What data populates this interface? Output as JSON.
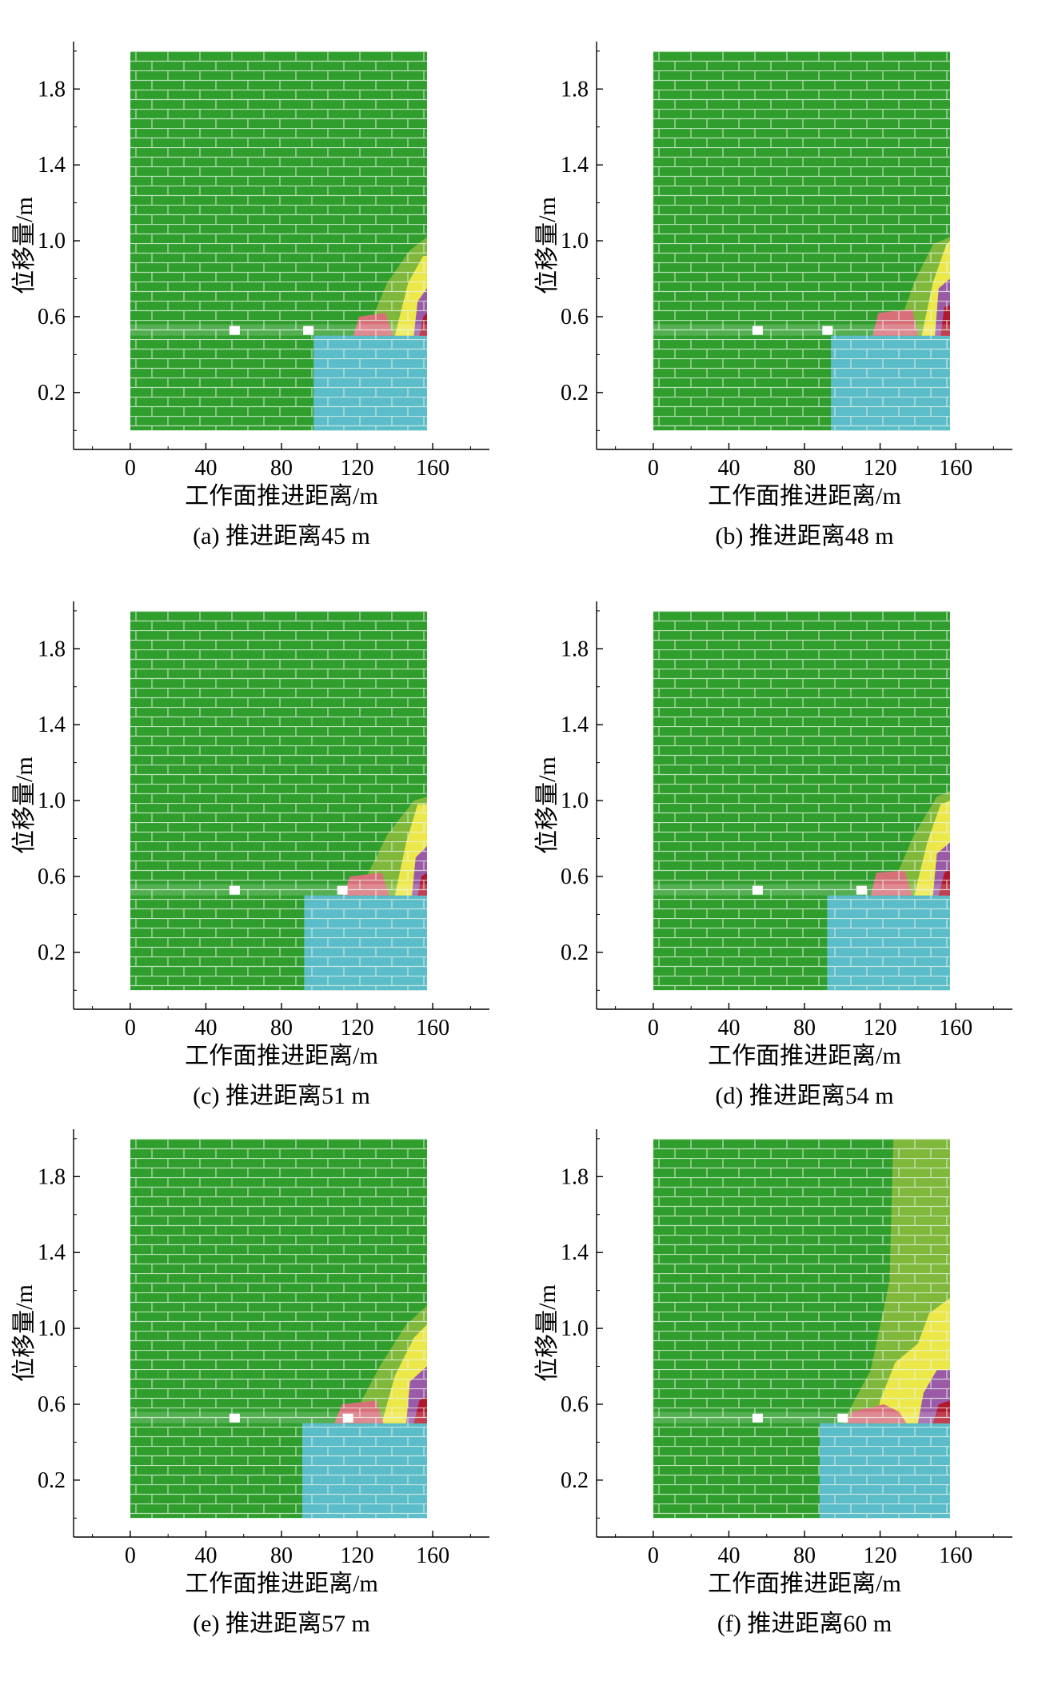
{
  "colors": {
    "green": "#2f9e2c",
    "light_green": "#7fb83a",
    "cyan": "#5bbdc9",
    "yellow": "#ede84a",
    "pink": "#d8707a",
    "purple": "#9a5aa8",
    "dark_red": "#b2172d",
    "joint": "#e8f4e8"
  },
  "chart_data": [
    {
      "type": "heatmap",
      "caption": "(a) 推进距离45 m",
      "advance": 45,
      "xlabel": "工作面推进距离/m",
      "ylabel": "位移量/m",
      "x_ticks": [
        0,
        40,
        80,
        120,
        160
      ],
      "y_ticks": [
        0.2,
        0.6,
        1.0,
        1.4,
        1.8
      ],
      "xlim": [
        -30,
        190
      ],
      "ylim": [
        -0.1,
        2.05
      ],
      "domain": {
        "x": [
          0,
          157
        ],
        "y": [
          0,
          2.0
        ]
      },
      "coal_seam_y": 0.5,
      "cyan_x_start": 97,
      "cavity_x": [
        55,
        94
      ],
      "zones": [
        {
          "color": "light_green",
          "points": [
            [
              124,
              0.5
            ],
            [
              136,
              0.78
            ],
            [
              148,
              0.95
            ],
            [
              157,
              1.02
            ],
            [
              157,
              0.5
            ]
          ]
        },
        {
          "color": "yellow",
          "points": [
            [
              140,
              0.5
            ],
            [
              147,
              0.78
            ],
            [
              155,
              0.92
            ],
            [
              157,
              0.92
            ],
            [
              157,
              0.5
            ]
          ]
        },
        {
          "color": "purple",
          "points": [
            [
              150,
              0.5
            ],
            [
              152,
              0.68
            ],
            [
              157,
              0.75
            ],
            [
              157,
              0.5
            ]
          ]
        },
        {
          "color": "dark_red",
          "points": [
            [
              153,
              0.5
            ],
            [
              155,
              0.6
            ],
            [
              157,
              0.62
            ],
            [
              157,
              0.5
            ]
          ]
        },
        {
          "color": "pink",
          "points": [
            [
              118,
              0.5
            ],
            [
              121,
              0.6
            ],
            [
              135,
              0.62
            ],
            [
              139,
              0.5
            ]
          ]
        }
      ]
    },
    {
      "type": "heatmap",
      "caption": "(b) 推进距离48 m",
      "advance": 48,
      "xlabel": "工作面推进距离/m",
      "ylabel": "位移量/m",
      "x_ticks": [
        0,
        40,
        80,
        120,
        160
      ],
      "y_ticks": [
        0.2,
        0.6,
        1.0,
        1.4,
        1.8
      ],
      "xlim": [
        -30,
        190
      ],
      "ylim": [
        -0.1,
        2.05
      ],
      "domain": {
        "x": [
          0,
          157
        ],
        "y": [
          0,
          2.0
        ]
      },
      "coal_seam_y": 0.5,
      "cyan_x_start": 94,
      "cavity_x": [
        55,
        92
      ],
      "zones": [
        {
          "color": "light_green",
          "points": [
            [
              128,
              0.5
            ],
            [
              138,
              0.78
            ],
            [
              148,
              0.98
            ],
            [
              157,
              1.02
            ],
            [
              157,
              0.5
            ]
          ]
        },
        {
          "color": "yellow",
          "points": [
            [
              142,
              0.5
            ],
            [
              148,
              0.78
            ],
            [
              155,
              0.98
            ],
            [
              157,
              1.0
            ],
            [
              157,
              0.5
            ]
          ]
        },
        {
          "color": "purple",
          "points": [
            [
              149,
              0.5
            ],
            [
              151,
              0.75
            ],
            [
              157,
              0.8
            ],
            [
              157,
              0.5
            ]
          ]
        },
        {
          "color": "dark_red",
          "points": [
            [
              152,
              0.5
            ],
            [
              154,
              0.65
            ],
            [
              157,
              0.66
            ],
            [
              157,
              0.5
            ]
          ]
        },
        {
          "color": "pink",
          "points": [
            [
              116,
              0.5
            ],
            [
              119,
              0.62
            ],
            [
              137,
              0.64
            ],
            [
              140,
              0.5
            ]
          ]
        }
      ]
    },
    {
      "type": "heatmap",
      "caption": "(c) 推进距离51 m",
      "advance": 51,
      "xlabel": "工作面推进距离/m",
      "ylabel": "位移量/m",
      "x_ticks": [
        0,
        40,
        80,
        120,
        160
      ],
      "y_ticks": [
        0.2,
        0.6,
        1.0,
        1.4,
        1.8
      ],
      "xlim": [
        -30,
        190
      ],
      "ylim": [
        -0.1,
        2.05
      ],
      "domain": {
        "x": [
          0,
          157
        ],
        "y": [
          0,
          2.0
        ]
      },
      "coal_seam_y": 0.5,
      "cyan_x_start": 92,
      "cavity_x": [
        55,
        112
      ],
      "zones": [
        {
          "color": "light_green",
          "points": [
            [
              120,
              0.5
            ],
            [
              136,
              0.82
            ],
            [
              150,
              1.0
            ],
            [
              157,
              1.02
            ],
            [
              157,
              0.5
            ]
          ]
        },
        {
          "color": "yellow",
          "points": [
            [
              140,
              0.5
            ],
            [
              146,
              0.78
            ],
            [
              152,
              0.98
            ],
            [
              157,
              0.98
            ],
            [
              157,
              0.5
            ]
          ]
        },
        {
          "color": "purple",
          "points": [
            [
              149,
              0.5
            ],
            [
              151,
              0.7
            ],
            [
              157,
              0.76
            ],
            [
              157,
              0.5
            ]
          ]
        },
        {
          "color": "dark_red",
          "points": [
            [
              152,
              0.5
            ],
            [
              154,
              0.6
            ],
            [
              157,
              0.62
            ],
            [
              157,
              0.5
            ]
          ]
        },
        {
          "color": "pink",
          "points": [
            [
              113,
              0.5
            ],
            [
              116,
              0.6
            ],
            [
              133,
              0.62
            ],
            [
              137,
              0.5
            ]
          ]
        }
      ]
    },
    {
      "type": "heatmap",
      "caption": "(d) 推进距离54 m",
      "advance": 54,
      "xlabel": "工作面推进距离/m",
      "ylabel": "位移量/m",
      "x_ticks": [
        0,
        40,
        80,
        120,
        160
      ],
      "y_ticks": [
        0.2,
        0.6,
        1.0,
        1.4,
        1.8
      ],
      "xlim": [
        -30,
        190
      ],
      "ylim": [
        -0.1,
        2.05
      ],
      "domain": {
        "x": [
          0,
          157
        ],
        "y": [
          0,
          2.0
        ]
      },
      "coal_seam_y": 0.5,
      "cyan_x_start": 92,
      "cavity_x": [
        55,
        110
      ],
      "zones": [
        {
          "color": "light_green",
          "points": [
            [
              124,
              0.5
            ],
            [
              138,
              0.82
            ],
            [
              150,
              1.02
            ],
            [
              157,
              1.05
            ],
            [
              157,
              0.5
            ]
          ]
        },
        {
          "color": "yellow",
          "points": [
            [
              138,
              0.5
            ],
            [
              145,
              0.78
            ],
            [
              152,
              0.98
            ],
            [
              157,
              1.0
            ],
            [
              157,
              0.5
            ]
          ]
        },
        {
          "color": "purple",
          "points": [
            [
              148,
              0.5
            ],
            [
              150,
              0.72
            ],
            [
              157,
              0.78
            ],
            [
              157,
              0.5
            ]
          ]
        },
        {
          "color": "dark_red",
          "points": [
            [
              151,
              0.5
            ],
            [
              154,
              0.62
            ],
            [
              157,
              0.64
            ],
            [
              157,
              0.5
            ]
          ]
        },
        {
          "color": "pink",
          "points": [
            [
              115,
              0.5
            ],
            [
              118,
              0.62
            ],
            [
              133,
              0.63
            ],
            [
              137,
              0.5
            ]
          ]
        }
      ]
    },
    {
      "type": "heatmap",
      "caption": "(e) 推进距离57 m",
      "advance": 57,
      "xlabel": "工作面推进距离/m",
      "ylabel": "位移量/m",
      "x_ticks": [
        0,
        40,
        80,
        120,
        160
      ],
      "y_ticks": [
        0.2,
        0.6,
        1.0,
        1.4,
        1.8
      ],
      "xlim": [
        -30,
        190
      ],
      "ylim": [
        -0.1,
        2.05
      ],
      "domain": {
        "x": [
          0,
          157
        ],
        "y": [
          0,
          2.0
        ]
      },
      "coal_seam_y": 0.5,
      "cyan_x_start": 91,
      "cavity_x": [
        55,
        115
      ],
      "zones": [
        {
          "color": "light_green",
          "points": [
            [
              116,
              0.5
            ],
            [
              132,
              0.8
            ],
            [
              146,
              1.02
            ],
            [
              157,
              1.12
            ],
            [
              157,
              0.5
            ]
          ]
        },
        {
          "color": "yellow",
          "points": [
            [
              133,
              0.5
            ],
            [
              140,
              0.75
            ],
            [
              150,
              0.95
            ],
            [
              157,
              1.02
            ],
            [
              157,
              0.5
            ]
          ]
        },
        {
          "color": "purple",
          "points": [
            [
              146,
              0.5
            ],
            [
              148,
              0.72
            ],
            [
              157,
              0.8
            ],
            [
              157,
              0.5
            ]
          ]
        },
        {
          "color": "dark_red",
          "points": [
            [
              150,
              0.5
            ],
            [
              153,
              0.62
            ],
            [
              157,
              0.64
            ],
            [
              157,
              0.5
            ]
          ]
        },
        {
          "color": "pink",
          "points": [
            [
              108,
              0.5
            ],
            [
              112,
              0.6
            ],
            [
              130,
              0.62
            ],
            [
              134,
              0.5
            ]
          ]
        }
      ]
    },
    {
      "type": "heatmap",
      "caption": "(f) 推进距离60 m",
      "advance": 60,
      "xlabel": "工作面推进距离/m",
      "ylabel": "位移量/m",
      "x_ticks": [
        0,
        40,
        80,
        120,
        160
      ],
      "y_ticks": [
        0.2,
        0.6,
        1.0,
        1.4,
        1.8
      ],
      "xlim": [
        -30,
        190
      ],
      "ylim": [
        -0.1,
        2.05
      ],
      "domain": {
        "x": [
          0,
          157
        ],
        "y": [
          0,
          2.0
        ]
      },
      "coal_seam_y": 0.5,
      "cyan_x_start": 88,
      "cavity_x": [
        55,
        100
      ],
      "zones": [
        {
          "color": "light_green",
          "points": [
            [
              100,
              0.5
            ],
            [
              115,
              0.78
            ],
            [
              125,
              1.25
            ],
            [
              127,
              2.0
            ],
            [
              157,
              2.0
            ],
            [
              157,
              0.5
            ]
          ]
        },
        {
          "color": "yellow",
          "points": [
            [
              118,
              0.5
            ],
            [
              120,
              0.62
            ],
            [
              128,
              0.82
            ],
            [
              140,
              0.92
            ],
            [
              146,
              1.08
            ],
            [
              157,
              1.16
            ],
            [
              157,
              0.5
            ]
          ]
        },
        {
          "color": "purple",
          "points": [
            [
              140,
              0.5
            ],
            [
              143,
              0.66
            ],
            [
              150,
              0.78
            ],
            [
              157,
              0.78
            ],
            [
              157,
              0.5
            ]
          ]
        },
        {
          "color": "dark_red",
          "points": [
            [
              148,
              0.5
            ],
            [
              151,
              0.6
            ],
            [
              157,
              0.62
            ],
            [
              157,
              0.5
            ]
          ]
        },
        {
          "color": "pink",
          "points": [
            [
              102,
              0.5
            ],
            [
              105,
              0.56
            ],
            [
              122,
              0.6
            ],
            [
              130,
              0.56
            ],
            [
              134,
              0.5
            ]
          ]
        }
      ]
    }
  ]
}
